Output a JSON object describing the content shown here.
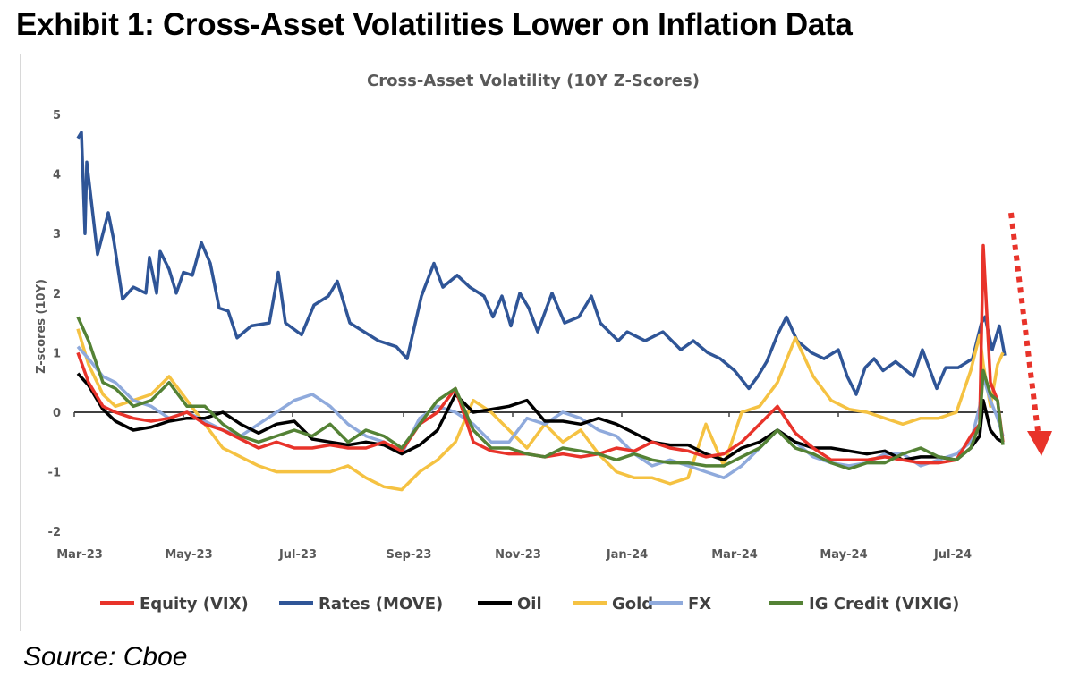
{
  "header": {
    "exhibit_title": "Exhibit 1: Cross-Asset Volatilities Lower on Inflation Data"
  },
  "footer": {
    "source": "Source: Cboe"
  },
  "chart_data": {
    "type": "line",
    "title": "Cross-Asset Volatility (10Y Z-Scores)",
    "xlabel": "",
    "ylabel": "Z-scores (10Y)",
    "ylim": [
      -2,
      5
    ],
    "yticks": [
      "5",
      "4",
      "3",
      "2",
      "1",
      "0",
      "-1",
      "-2"
    ],
    "xticks": [
      {
        "date": "2023-03-01",
        "label": "Mar-23"
      },
      {
        "date": "2023-05-01",
        "label": "May-23"
      },
      {
        "date": "2023-07-01",
        "label": "Jul-23"
      },
      {
        "date": "2023-09-01",
        "label": "Sep-23"
      },
      {
        "date": "2023-11-01",
        "label": "Nov-23"
      },
      {
        "date": "2024-01-01",
        "label": "Jan-24"
      },
      {
        "date": "2024-03-01",
        "label": "Mar-24"
      },
      {
        "date": "2024-05-01",
        "label": "May-24"
      },
      {
        "date": "2024-07-01",
        "label": "Jul-24"
      }
    ],
    "xlim": [
      "2023-03-01",
      "2024-08-10"
    ],
    "grid": false,
    "legend": "bottom",
    "annotation": {
      "type": "dotted-arrow",
      "direction": "down",
      "color": "#e8332a"
    },
    "shared_x": [
      "2023-03-03",
      "2023-03-09",
      "2023-03-17",
      "2023-03-24",
      "2023-04-03",
      "2023-04-13",
      "2023-04-23",
      "2023-05-03",
      "2023-05-13",
      "2023-05-23",
      "2023-06-02",
      "2023-06-12",
      "2023-06-22",
      "2023-07-02",
      "2023-07-12",
      "2023-07-22",
      "2023-08-01",
      "2023-08-11",
      "2023-08-21",
      "2023-08-31",
      "2023-09-10",
      "2023-09-20",
      "2023-09-30",
      "2023-10-10",
      "2023-10-20",
      "2023-10-30",
      "2023-11-09",
      "2023-11-19",
      "2023-11-29",
      "2023-12-09",
      "2023-12-19",
      "2023-12-29",
      "2024-01-08",
      "2024-01-18",
      "2024-01-28",
      "2024-02-07",
      "2024-02-17",
      "2024-02-27",
      "2024-03-08",
      "2024-03-18",
      "2024-03-28",
      "2024-04-07",
      "2024-04-17",
      "2024-04-27",
      "2024-05-07",
      "2024-05-17",
      "2024-05-27",
      "2024-06-06",
      "2024-06-16",
      "2024-06-26",
      "2024-07-06",
      "2024-07-14",
      "2024-07-19",
      "2024-07-21",
      "2024-07-25",
      "2024-07-29",
      "2024-08-01"
    ],
    "series": [
      {
        "name": "Equity (VIX)",
        "color": "#e8332a",
        "values": [
          1.0,
          0.5,
          0.1,
          0.0,
          -0.1,
          -0.15,
          -0.1,
          0.0,
          -0.2,
          -0.3,
          -0.45,
          -0.6,
          -0.5,
          -0.6,
          -0.6,
          -0.55,
          -0.6,
          -0.6,
          -0.5,
          -0.65,
          -0.2,
          0.0,
          0.4,
          -0.5,
          -0.65,
          -0.7,
          -0.7,
          -0.75,
          -0.7,
          -0.75,
          -0.7,
          -0.6,
          -0.65,
          -0.5,
          -0.6,
          -0.65,
          -0.75,
          -0.7,
          -0.5,
          -0.2,
          0.1,
          -0.35,
          -0.6,
          -0.8,
          -0.8,
          -0.8,
          -0.75,
          -0.8,
          -0.85,
          -0.85,
          -0.8,
          -0.4,
          -0.2,
          2.8,
          0.5,
          0.2,
          -0.5
        ]
      },
      {
        "name": "Rates (MOVE)",
        "color": "#2f5597",
        "x": [
          "2023-03-03",
          "2023-03-05",
          "2023-03-07",
          "2023-03-08",
          "2023-03-14",
          "2023-03-20",
          "2023-03-23",
          "2023-03-28",
          "2023-04-03",
          "2023-04-10",
          "2023-04-12",
          "2023-04-16",
          "2023-04-18",
          "2023-04-23",
          "2023-04-27",
          "2023-05-01",
          "2023-05-06",
          "2023-05-11",
          "2023-05-16",
          "2023-05-21",
          "2023-05-26",
          "2023-05-31",
          "2023-06-08",
          "2023-06-18",
          "2023-06-23",
          "2023-06-27",
          "2023-07-06",
          "2023-07-13",
          "2023-07-21",
          "2023-07-26",
          "2023-08-02",
          "2023-08-10",
          "2023-08-18",
          "2023-08-28",
          "2023-09-03",
          "2023-09-11",
          "2023-09-18",
          "2023-09-23",
          "2023-10-01",
          "2023-10-08",
          "2023-10-16",
          "2023-10-21",
          "2023-10-26",
          "2023-10-31",
          "2023-11-05",
          "2023-11-10",
          "2023-11-15",
          "2023-11-23",
          "2023-11-30",
          "2023-12-08",
          "2023-12-15",
          "2023-12-20",
          "2023-12-30",
          "2024-01-04",
          "2024-01-14",
          "2024-01-24",
          "2024-02-03",
          "2024-02-10",
          "2024-02-18",
          "2024-02-25",
          "2024-03-04",
          "2024-03-12",
          "2024-03-17",
          "2024-03-22",
          "2024-03-28",
          "2024-04-02",
          "2024-04-08",
          "2024-04-16",
          "2024-04-23",
          "2024-05-01",
          "2024-05-06",
          "2024-05-11",
          "2024-05-16",
          "2024-05-21",
          "2024-05-26",
          "2024-06-02",
          "2024-06-12",
          "2024-06-17",
          "2024-06-25",
          "2024-06-30",
          "2024-07-07",
          "2024-07-15",
          "2024-07-20",
          "2024-07-22",
          "2024-07-26",
          "2024-07-30",
          "2024-08-02"
        ],
        "values": [
          4.6,
          4.7,
          3.0,
          4.2,
          2.65,
          3.35,
          2.9,
          1.9,
          2.1,
          2.0,
          2.6,
          2.0,
          2.7,
          2.4,
          2.0,
          2.35,
          2.3,
          2.85,
          2.5,
          1.75,
          1.7,
          1.25,
          1.45,
          1.5,
          2.35,
          1.5,
          1.3,
          1.8,
          1.95,
          2.2,
          1.5,
          1.35,
          1.2,
          1.1,
          0.9,
          1.95,
          2.5,
          2.1,
          2.3,
          2.1,
          1.95,
          1.6,
          1.95,
          1.45,
          2.0,
          1.75,
          1.35,
          2.0,
          1.5,
          1.6,
          1.95,
          1.5,
          1.2,
          1.35,
          1.2,
          1.35,
          1.05,
          1.2,
          1.0,
          0.9,
          0.7,
          0.4,
          0.6,
          0.85,
          1.3,
          1.6,
          1.2,
          1.0,
          0.9,
          1.05,
          0.6,
          0.3,
          0.75,
          0.9,
          0.7,
          0.85,
          0.6,
          1.05,
          0.4,
          0.75,
          0.75,
          0.9,
          1.5,
          1.6,
          1.05,
          1.45,
          0.95
        ]
      },
      {
        "name": "Oil",
        "color": "#000000",
        "values": [
          0.65,
          0.45,
          0.05,
          -0.15,
          -0.3,
          -0.25,
          -0.15,
          -0.1,
          -0.1,
          0.0,
          -0.2,
          -0.35,
          -0.2,
          -0.15,
          -0.45,
          -0.5,
          -0.55,
          -0.5,
          -0.55,
          -0.7,
          -0.55,
          -0.3,
          0.3,
          0.0,
          0.05,
          0.1,
          0.2,
          -0.15,
          -0.15,
          -0.2,
          -0.1,
          -0.2,
          -0.35,
          -0.5,
          -0.55,
          -0.55,
          -0.7,
          -0.8,
          -0.6,
          -0.5,
          -0.3,
          -0.5,
          -0.6,
          -0.6,
          -0.65,
          -0.7,
          -0.65,
          -0.8,
          -0.75,
          -0.75,
          -0.8,
          -0.6,
          -0.4,
          0.2,
          -0.3,
          -0.45,
          -0.5
        ]
      },
      {
        "name": "Gold",
        "color": "#f5c242",
        "values": [
          1.4,
          0.8,
          0.3,
          0.1,
          0.2,
          0.3,
          0.6,
          0.2,
          -0.2,
          -0.6,
          -0.75,
          -0.9,
          -1.0,
          -1.0,
          -1.0,
          -1.0,
          -0.9,
          -1.1,
          -1.25,
          -1.3,
          -1.0,
          -0.8,
          -0.5,
          0.2,
          0.0,
          -0.3,
          -0.6,
          -0.2,
          -0.5,
          -0.3,
          -0.7,
          -1.0,
          -1.1,
          -1.1,
          -1.2,
          -1.1,
          -0.2,
          -0.9,
          0.0,
          0.1,
          0.5,
          1.25,
          0.6,
          0.2,
          0.05,
          0.0,
          -0.1,
          -0.2,
          -0.1,
          -0.1,
          0.0,
          0.7,
          1.3,
          0.8,
          0.1,
          0.8,
          1.0
        ]
      },
      {
        "name": "FX",
        "color": "#8faadc",
        "values": [
          1.1,
          0.9,
          0.6,
          0.5,
          0.2,
          0.1,
          -0.1,
          0.0,
          -0.15,
          -0.3,
          -0.4,
          -0.2,
          0.0,
          0.2,
          0.3,
          0.1,
          -0.2,
          -0.4,
          -0.5,
          -0.7,
          -0.1,
          0.1,
          0.0,
          -0.2,
          -0.5,
          -0.5,
          -0.1,
          -0.2,
          0.0,
          -0.1,
          -0.3,
          -0.4,
          -0.7,
          -0.9,
          -0.8,
          -0.9,
          -1.0,
          -1.1,
          -0.9,
          -0.6,
          -0.3,
          -0.5,
          -0.75,
          -0.85,
          -0.9,
          -0.85,
          -0.7,
          -0.7,
          -0.9,
          -0.8,
          -0.7,
          -0.5,
          0.1,
          0.6,
          0.2,
          -0.1,
          -0.4
        ]
      },
      {
        "name": "IG Credit (VIXIG)",
        "color": "#548235",
        "values": [
          1.6,
          1.2,
          0.5,
          0.4,
          0.1,
          0.2,
          0.5,
          0.1,
          0.1,
          -0.2,
          -0.4,
          -0.5,
          -0.4,
          -0.3,
          -0.4,
          -0.2,
          -0.5,
          -0.3,
          -0.4,
          -0.6,
          -0.2,
          0.2,
          0.4,
          -0.3,
          -0.6,
          -0.6,
          -0.7,
          -0.75,
          -0.6,
          -0.65,
          -0.7,
          -0.8,
          -0.7,
          -0.8,
          -0.85,
          -0.85,
          -0.9,
          -0.9,
          -0.75,
          -0.6,
          -0.3,
          -0.6,
          -0.7,
          -0.85,
          -0.95,
          -0.85,
          -0.85,
          -0.7,
          -0.6,
          -0.75,
          -0.8,
          -0.6,
          -0.2,
          0.7,
          0.3,
          0.2,
          -0.55
        ]
      }
    ]
  }
}
